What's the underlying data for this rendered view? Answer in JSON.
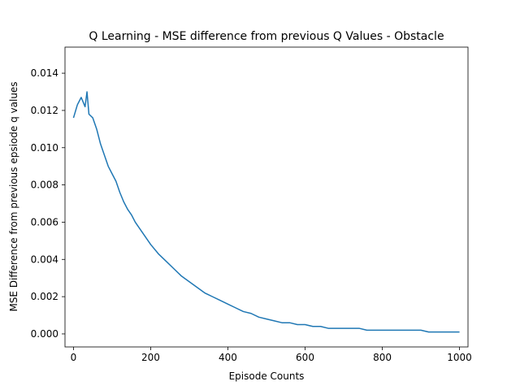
{
  "chart_data": {
    "type": "line",
    "title": "Q Learning - MSE difference from previous Q Values - Obstacle",
    "xlabel": "Episode Counts",
    "ylabel": "MSE Difference from previous epsiode q values",
    "xlim": [
      -22,
      1022
    ],
    "ylim": [
      -0.0007,
      0.0154
    ],
    "xticks": [
      0,
      200,
      400,
      600,
      800,
      1000
    ],
    "yticks": [
      0.0,
      0.002,
      0.004,
      0.006,
      0.008,
      0.01,
      0.012,
      0.014
    ],
    "xtick_labels": [
      "0",
      "200",
      "400",
      "600",
      "800",
      "1000"
    ],
    "ytick_labels": [
      "0.000",
      "0.002",
      "0.004",
      "0.006",
      "0.008",
      "0.010",
      "0.012",
      "0.014"
    ],
    "grid": false,
    "line_color": "#1f77b4",
    "series": [
      {
        "x": [
          0,
          10,
          20,
          30,
          35,
          40,
          50,
          60,
          70,
          80,
          90,
          100,
          110,
          120,
          130,
          140,
          150,
          160,
          170,
          180,
          190,
          200,
          220,
          240,
          260,
          280,
          300,
          320,
          340,
          360,
          380,
          400,
          420,
          440,
          460,
          480,
          500,
          520,
          540,
          560,
          580,
          600,
          620,
          640,
          660,
          680,
          700,
          720,
          740,
          760,
          780,
          800,
          820,
          840,
          860,
          880,
          900,
          920,
          940,
          960,
          980,
          1000
        ],
        "values": [
          0.0116,
          0.0123,
          0.0127,
          0.0122,
          0.013,
          0.0118,
          0.0116,
          0.011,
          0.0102,
          0.0096,
          0.009,
          0.0086,
          0.0082,
          0.0076,
          0.0071,
          0.0067,
          0.0064,
          0.006,
          0.0057,
          0.0054,
          0.0051,
          0.0048,
          0.0043,
          0.0039,
          0.0035,
          0.0031,
          0.0028,
          0.0025,
          0.0022,
          0.002,
          0.0018,
          0.0016,
          0.0014,
          0.0012,
          0.0011,
          0.0009,
          0.0008,
          0.0007,
          0.0006,
          0.0006,
          0.0005,
          0.0005,
          0.0004,
          0.0004,
          0.0003,
          0.0003,
          0.0003,
          0.0003,
          0.0003,
          0.0002,
          0.0002,
          0.0002,
          0.0002,
          0.0002,
          0.0002,
          0.0002,
          0.0002,
          0.0001,
          0.0001,
          0.0001,
          0.0001,
          0.0001
        ]
      }
    ]
  }
}
